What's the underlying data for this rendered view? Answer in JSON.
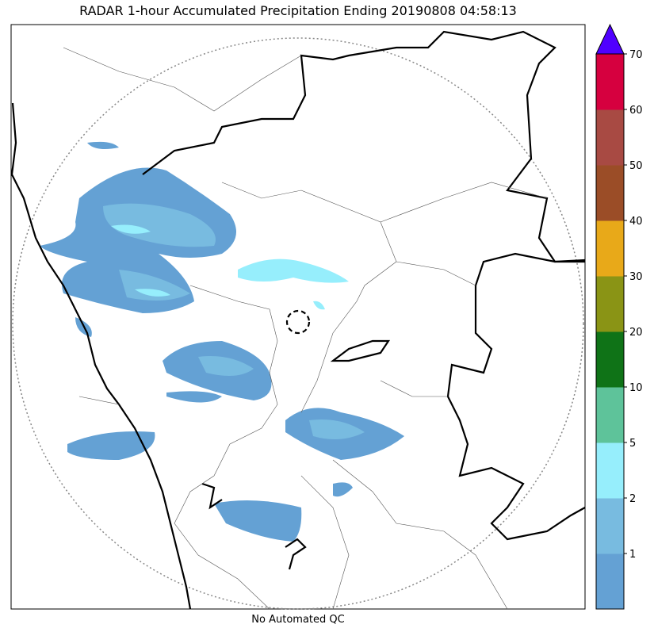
{
  "title": "RADAR 1-hour Accumulated Precipitation Ending 20190808 04:58:13",
  "footer": "No Automated QC",
  "colorbar": {
    "levels": [
      1,
      2,
      5,
      10,
      20,
      30,
      40,
      50,
      60,
      70
    ],
    "colors": [
      "#64a1d4",
      "#78bbe0",
      "#96eefc",
      "#5ec39a",
      "#0f7317",
      "#8a9415",
      "#e8a919",
      "#9b4d27",
      "#a84a43",
      "#d6003f",
      "#5000ff"
    ]
  }
}
